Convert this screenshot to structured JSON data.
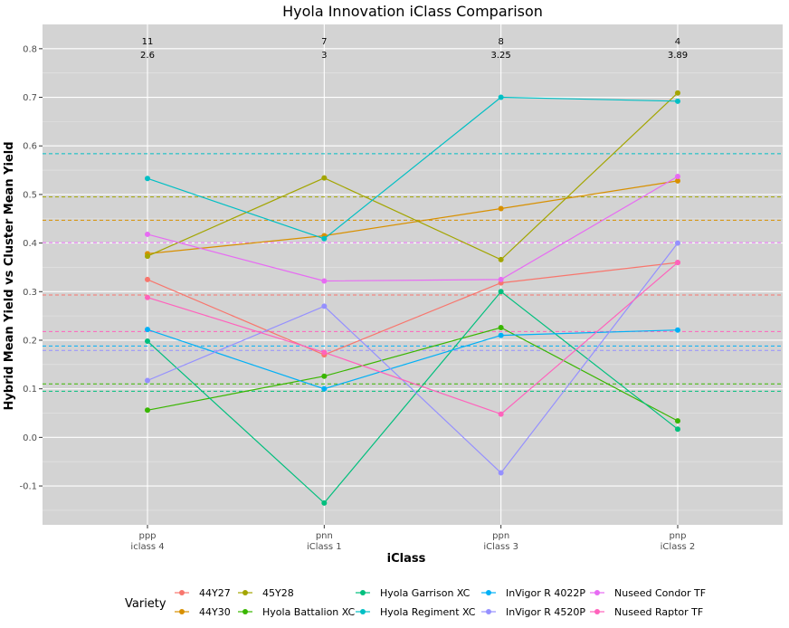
{
  "chart_data": {
    "type": "line",
    "title": "Hyola Innovation iClass Comparison",
    "xlabel": "iClass",
    "ylabel": "Hybrid Mean Yield vs Cluster Mean Yield",
    "ylim": [
      -0.18,
      0.85
    ],
    "yticks": [
      -0.1,
      0.0,
      0.1,
      0.2,
      0.3,
      0.4,
      0.5,
      0.6,
      0.7,
      0.8
    ],
    "ytick_labels": [
      "-0.1",
      "0.0",
      "0.1",
      "0.2",
      "0.3",
      "0.4",
      "0.5",
      "0.6",
      "0.7",
      "0.8"
    ],
    "categories": [
      {
        "code": "ppp",
        "label": "iclass 4"
      },
      {
        "code": "pnn",
        "label": "iClass 1"
      },
      {
        "code": "ppn",
        "label": "iClass 3"
      },
      {
        "code": "pnp",
        "label": "iClass 2"
      }
    ],
    "annotations": [
      {
        "top": "11",
        "bottom": "2.6"
      },
      {
        "top": "7",
        "bottom": "3"
      },
      {
        "top": "8",
        "bottom": "3.25"
      },
      {
        "top": "4",
        "bottom": "3.89"
      }
    ],
    "grid": true,
    "background": "#d3d3d3",
    "legend": {
      "title": "Variety",
      "position": "bottom"
    },
    "series": [
      {
        "name": "44Y27",
        "color": "#f8766d",
        "values": [
          0.325,
          0.17,
          0.318,
          0.36
        ],
        "mean": 0.293
      },
      {
        "name": "44Y30",
        "color": "#d89000",
        "values": [
          0.378,
          0.415,
          0.471,
          0.528
        ],
        "mean": 0.447
      },
      {
        "name": "45Y28",
        "color": "#a3a500",
        "values": [
          0.373,
          0.534,
          0.366,
          0.709
        ],
        "mean": 0.495
      },
      {
        "name": "Hyola Battalion XC",
        "color": "#39b600",
        "values": [
          0.056,
          0.126,
          0.226,
          0.034
        ],
        "mean": 0.11
      },
      {
        "name": "Hyola Garrison XC",
        "color": "#00bf7d",
        "values": [
          0.198,
          -0.135,
          0.3,
          0.017
        ],
        "mean": 0.095
      },
      {
        "name": "Hyola Regiment XC",
        "color": "#00bfc4",
        "values": [
          0.533,
          0.409,
          0.7,
          0.692
        ],
        "mean": 0.584
      },
      {
        "name": "InVigor R 4022P",
        "color": "#00b0f6",
        "values": [
          0.222,
          0.1,
          0.21,
          0.221
        ],
        "mean": 0.188
      },
      {
        "name": "InVigor R 4520P",
        "color": "#9590ff",
        "values": [
          0.117,
          0.27,
          -0.073,
          0.4
        ],
        "mean": 0.179
      },
      {
        "name": "Nuseed Condor TF",
        "color": "#e76bf3",
        "values": [
          0.418,
          0.322,
          0.325,
          0.537
        ],
        "mean": 0.401
      },
      {
        "name": "Nuseed Raptor TF",
        "color": "#ff62bc",
        "values": [
          0.288,
          0.175,
          0.048,
          0.36
        ],
        "mean": 0.218
      }
    ]
  }
}
